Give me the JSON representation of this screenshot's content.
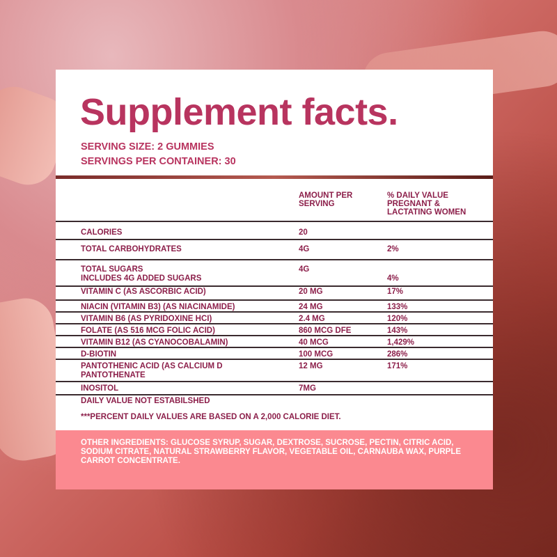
{
  "title": "Supplement facts.",
  "serving_size": "SERVING SIZE: 2 GUMMIES",
  "servings_per_container": "SERVINGS PER CONTAINER: 30",
  "columns": {
    "amount": "AMOUNT PER SERVING",
    "dv": "% DAILY VALUE PREGNANT & LACTATING WOMEN"
  },
  "rows": [
    {
      "name": "CALORIES",
      "amount": "20",
      "dv": ""
    },
    {
      "name": "TOTAL CARBOHYDRATES",
      "amount": "4G",
      "dv": "2%"
    },
    {
      "name": "TOTAL SUGARS",
      "sub": "INCLUDES 4G ADDED SUGARS",
      "amount": "4G",
      "dv": "4%"
    },
    {
      "name": "VITAMIN C (AS ASCORBIC ACID)",
      "amount": "20 MG",
      "dv": "17%"
    },
    {
      "name": "NIACIN (VITAMIN B3) (AS NIACINAMIDE)",
      "amount": "24 MG",
      "dv": "133%"
    },
    {
      "name": "VITAMIN B6 (AS PYRIDOXINE HCI)",
      "amount": "2.4 MG",
      "dv": "120%"
    },
    {
      "name": "FOLATE (AS 516 MCG FOLIC ACID)",
      "amount": "860 MCG DFE",
      "dv": "143%"
    },
    {
      "name": "VITAMIN B12 (AS CYANOCOBALAMIN)",
      "amount": "40 MCG",
      "dv": "1,429%"
    },
    {
      "name": "D-BIOTIN",
      "amount": "100 MCG",
      "dv": "286%"
    },
    {
      "name": "PANTOTHENIC ACID (AS CALCIUM D PANTOTHENATE",
      "amount": "12 MG",
      "dv": "171%"
    },
    {
      "name": "INOSITOL",
      "amount": "7MG",
      "dv": ""
    }
  ],
  "notes": [
    "DAILY VALUE NOT ESTABILSHED",
    "***PERCENT DAILY VALUES ARE BASED ON A 2,000 CALORIE DIET."
  ],
  "other_ingredients": "OTHER INGREDIENTS: GLUCOSE SYRUP, SUGAR, DEXTROSE, SUCROSE, PECTIN, CITRIC ACID, SODIUM CITRATE, NATURAL STRAWBERRY FLAVOR, VEGETABLE OIL, CARNAUBA WAX, PURPLE CARROT CONCENTRATE.",
  "colors": {
    "title": "#b8345f",
    "text": "#8c1f4a",
    "ingredients_bg": "#fb8990"
  }
}
